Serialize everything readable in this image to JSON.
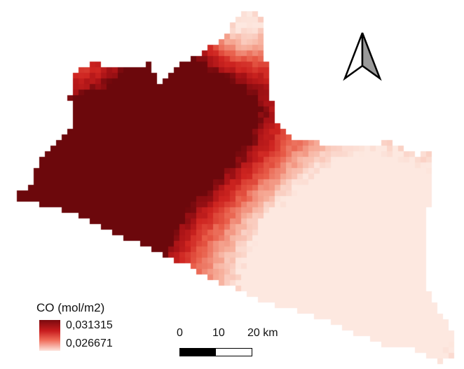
{
  "map": {
    "variable": "CO",
    "palette": {
      "high": "#7a0a0e",
      "mid": "#d42a25",
      "low": "#fde6de"
    }
  },
  "legend": {
    "title": "CO (mol/m2)",
    "max_label": "0,031315",
    "min_label": "0,026671"
  },
  "scale_bar": {
    "labels": [
      "0",
      "10",
      "20 km"
    ]
  },
  "north_arrow": {
    "icon": "north-arrow-icon"
  }
}
